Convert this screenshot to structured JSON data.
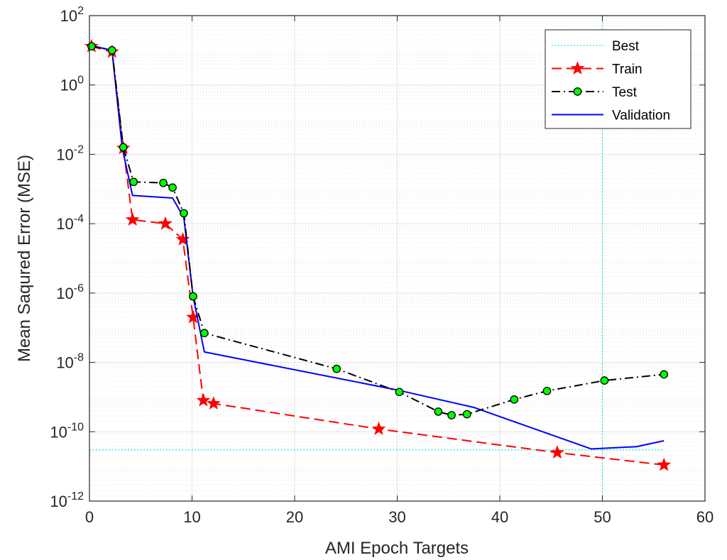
{
  "chart_data": {
    "type": "line",
    "title": "",
    "xlabel": "AMI Epoch Targets",
    "ylabel": "Mean Saqured Error (MSE)",
    "xlim": [
      0,
      60
    ],
    "ylim": [
      1e-12,
      100
    ],
    "yscale": "log",
    "grid": true,
    "minor_grid": true,
    "legend_position": "top-right",
    "x_ticks": [
      "0",
      "10",
      "20",
      "30",
      "40",
      "50",
      "60"
    ],
    "y_ticks": [
      {
        "base": "10",
        "exp": "-12"
      },
      {
        "base": "10",
        "exp": "-10"
      },
      {
        "base": "10",
        "exp": "-8"
      },
      {
        "base": "10",
        "exp": "-6"
      },
      {
        "base": "10",
        "exp": "-4"
      },
      {
        "base": "10",
        "exp": "-2"
      },
      {
        "base": "10",
        "exp": "0"
      },
      {
        "base": "10",
        "exp": "2"
      }
    ],
    "best_x": 50,
    "series": [
      {
        "name": "Best",
        "color": "#00e5e5",
        "style": "dotted",
        "marker": "none",
        "x": [
          0,
          56
        ],
        "y": [
          3e-11,
          3e-11
        ]
      },
      {
        "name": "Train",
        "color": "#ff0000",
        "style": "dashed",
        "marker": "star",
        "x": [
          0.2,
          2.2,
          3.3,
          4.2,
          7.4,
          9.1,
          10.1,
          11.1,
          12.1,
          28.2,
          45.6,
          56
        ],
        "y": [
          13,
          9,
          0.015,
          0.00013,
          0.0001,
          3.5e-05,
          2e-07,
          8e-10,
          6.5e-10,
          1.2e-10,
          2.5e-11,
          1.1e-11
        ]
      },
      {
        "name": "Test",
        "color": "#000000",
        "marker_fill": "#00ff00",
        "style": "dashdot",
        "marker": "circle",
        "x": [
          0.2,
          2.2,
          3.3,
          4.3,
          7.2,
          8.1,
          9.2,
          10.1,
          11.2,
          24.1,
          30.2,
          34,
          35.3,
          36.8,
          41.4,
          44.6,
          50.2,
          56
        ],
        "y": [
          13,
          10,
          0.016,
          0.0016,
          0.0015,
          0.0011,
          0.0002,
          8e-07,
          7e-08,
          6.5e-09,
          1.4e-09,
          3.8e-10,
          3e-10,
          3.2e-10,
          8.5e-10,
          1.5e-09,
          3e-09,
          4.5e-09
        ]
      },
      {
        "name": "Validation",
        "color": "#0000ff",
        "style": "solid",
        "marker": "none",
        "x": [
          0,
          2.2,
          3.2,
          4.2,
          8.1,
          9.2,
          10.1,
          11.2,
          30,
          37.5,
          48.9,
          53.3,
          56
        ],
        "y": [
          14,
          10,
          0.015,
          0.00065,
          0.00055,
          0.00015,
          8e-07,
          2e-08,
          1.6e-09,
          5e-10,
          3.2e-11,
          3.7e-11,
          5.5e-11
        ]
      }
    ]
  }
}
